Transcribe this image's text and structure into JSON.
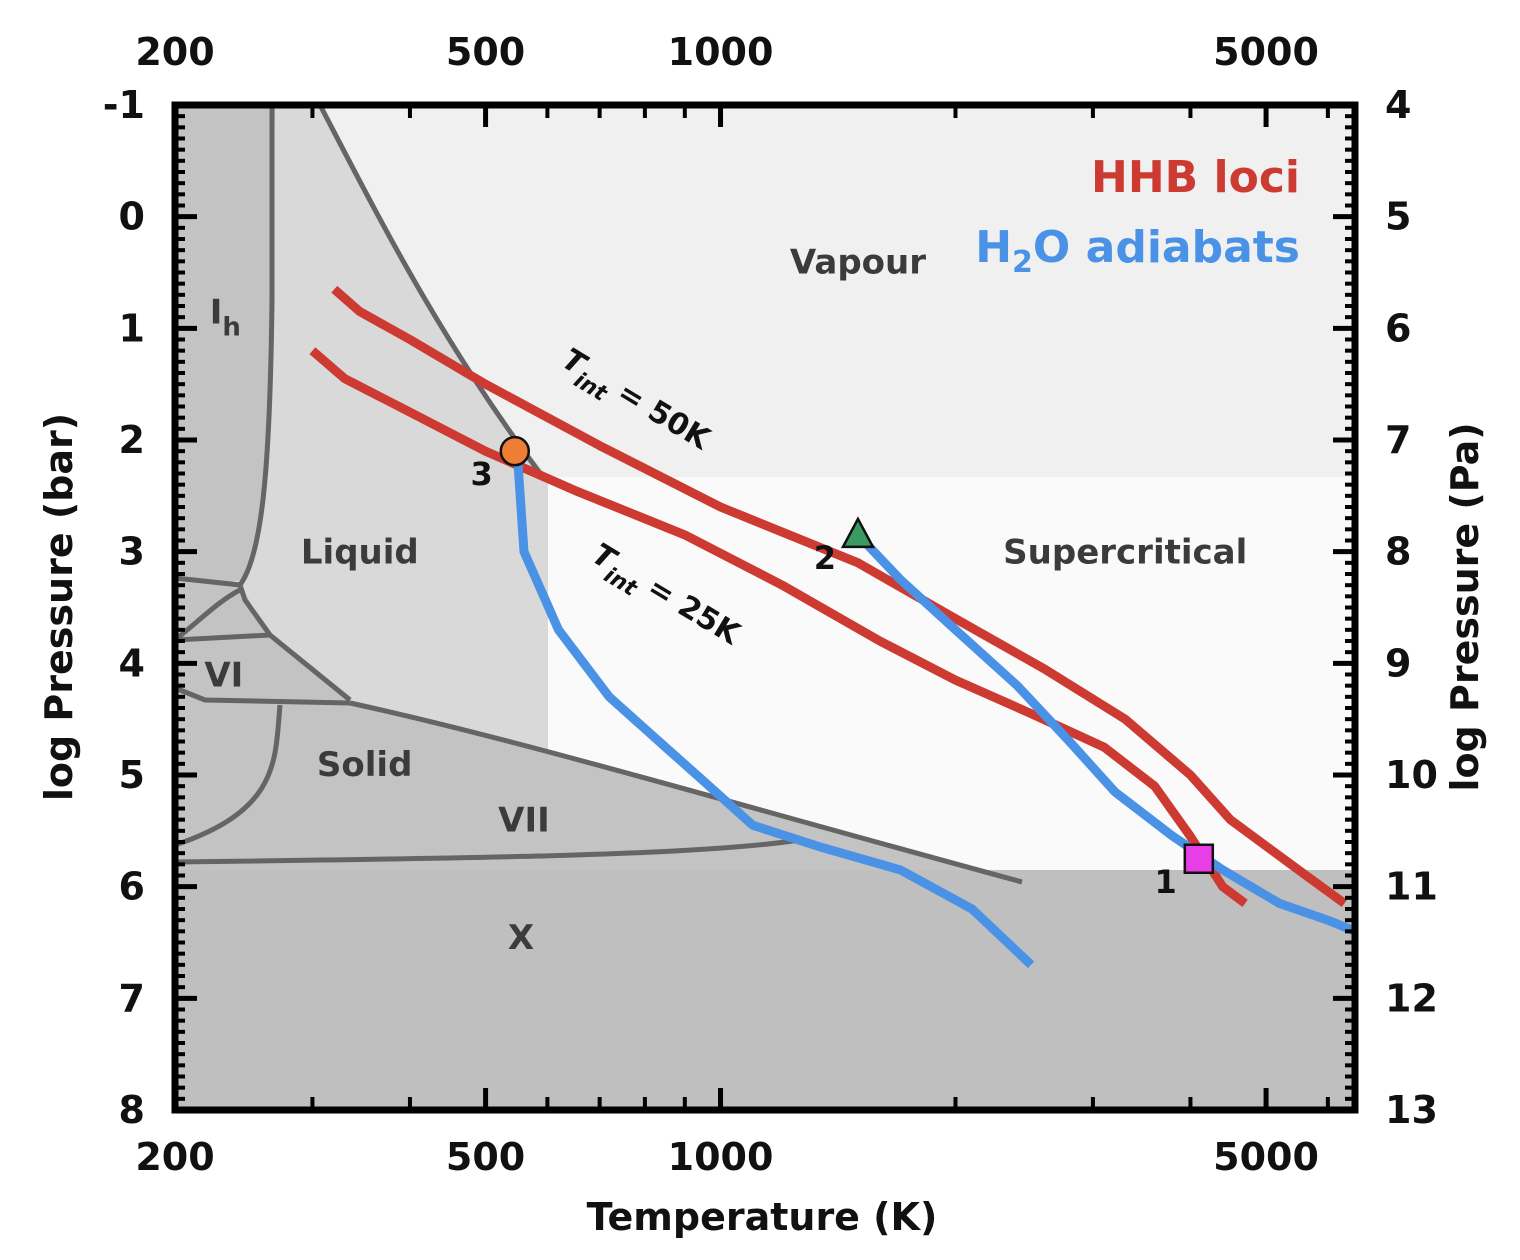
{
  "chart_data": {
    "type": "line",
    "xlabel": "Temperature (K)",
    "ylabel": "log Pressure (bar)",
    "y2label": "log Pressure (Pa)",
    "x_scale": "log",
    "xlim": [
      200,
      6500
    ],
    "ylim": [
      -1,
      8
    ],
    "y_inverted": true,
    "x_ticks": [
      "200",
      "500",
      "1000",
      "5000"
    ],
    "x_tick_values": [
      200,
      500,
      1000,
      5000
    ],
    "y_ticks": [
      "-1",
      "0",
      "1",
      "2",
      "3",
      "4",
      "5",
      "6",
      "7",
      "8"
    ],
    "y2_ticks": [
      "4",
      "5",
      "6",
      "7",
      "8",
      "9",
      "10",
      "11",
      "12",
      "13"
    ],
    "legend_position": "top-right",
    "legend": [
      {
        "label": "HHB loci",
        "color": "#cc3a31"
      },
      {
        "label": "H",
        "sub": "2",
        "suffix": "O adiabats",
        "color": "#4a92e6"
      }
    ],
    "regions": [
      {
        "name": "Vapour",
        "label": "Vapour",
        "x": 1500,
        "y": 0.4
      },
      {
        "name": "Liquid",
        "label": "Liquid",
        "x": 345,
        "y": 3.0
      },
      {
        "name": "Supercritical",
        "label": "Supercritical",
        "x": 3300,
        "y": 3.0
      },
      {
        "name": "Solid",
        "label": "Solid",
        "x": 350,
        "y": 4.9
      },
      {
        "name": "Ice Ih",
        "label": "I",
        "sub": "h",
        "x": 232,
        "y": 0.85
      },
      {
        "name": "Ice VI",
        "label": "VI",
        "x": 231,
        "y": 4.1
      },
      {
        "name": "Ice VII",
        "label": "VII",
        "x": 560,
        "y": 5.4
      },
      {
        "name": "Ice X",
        "label": "X",
        "x": 555,
        "y": 6.45
      }
    ],
    "series": [
      {
        "name": "HHB loci",
        "label": "T_int = 50K",
        "color": "#cc3a31",
        "points": [
          [
            320,
            0.65
          ],
          [
            345,
            0.85
          ],
          [
            400,
            1.1
          ],
          [
            500,
            1.5
          ],
          [
            700,
            2.05
          ],
          [
            1000,
            2.6
          ],
          [
            1500,
            3.1
          ],
          [
            2000,
            3.6
          ],
          [
            2600,
            4.05
          ],
          [
            3300,
            4.5
          ],
          [
            4000,
            5.0
          ],
          [
            4500,
            5.4
          ],
          [
            5500,
            5.85
          ],
          [
            6300,
            6.15
          ]
        ]
      },
      {
        "name": "HHB loci",
        "label": "T_int = 25K",
        "color": "#cc3a31",
        "points": [
          [
            300,
            1.2
          ],
          [
            330,
            1.45
          ],
          [
            400,
            1.75
          ],
          [
            500,
            2.1
          ],
          [
            650,
            2.45
          ],
          [
            900,
            2.85
          ],
          [
            1200,
            3.3
          ],
          [
            1600,
            3.8
          ],
          [
            2000,
            4.15
          ],
          [
            2500,
            4.45
          ],
          [
            3100,
            4.75
          ],
          [
            3600,
            5.1
          ],
          [
            4000,
            5.55
          ],
          [
            4400,
            6.0
          ],
          [
            4700,
            6.15
          ]
        ]
      },
      {
        "name": "H2O adiabats",
        "color": "#4a92e6",
        "points": [
          [
            550,
            2.2
          ],
          [
            560,
            3.0
          ],
          [
            620,
            3.7
          ],
          [
            720,
            4.3
          ],
          [
            850,
            4.75
          ],
          [
            950,
            5.05
          ],
          [
            1100,
            5.45
          ],
          [
            1350,
            5.65
          ],
          [
            1700,
            5.85
          ],
          [
            2100,
            6.2
          ],
          [
            2500,
            6.7
          ]
        ]
      },
      {
        "name": "H2O adiabats",
        "color": "#4a92e6",
        "points": [
          [
            1500,
            2.85
          ],
          [
            1700,
            3.25
          ],
          [
            2000,
            3.7
          ],
          [
            2400,
            4.2
          ],
          [
            2800,
            4.7
          ],
          [
            3200,
            5.15
          ],
          [
            3800,
            5.55
          ],
          [
            4400,
            5.85
          ],
          [
            5200,
            6.15
          ],
          [
            6000,
            6.3
          ],
          [
            6500,
            6.4
          ]
        ]
      }
    ],
    "markers": [
      {
        "label": "1",
        "shape": "square",
        "color": "#e83ee6",
        "x": 4100,
        "y": 5.75
      },
      {
        "label": "2",
        "shape": "triangle",
        "color": "#3a9a63",
        "x": 1500,
        "y": 2.85
      },
      {
        "label": "3",
        "shape": "circle",
        "color": "#ee7e33",
        "x": 545,
        "y": 2.1
      }
    ],
    "annotations": [
      {
        "text": "T_int = 50K",
        "x": 760,
        "y": 1.6
      },
      {
        "text": "T_int = 25K",
        "x": 650,
        "y": 3.55
      }
    ]
  }
}
